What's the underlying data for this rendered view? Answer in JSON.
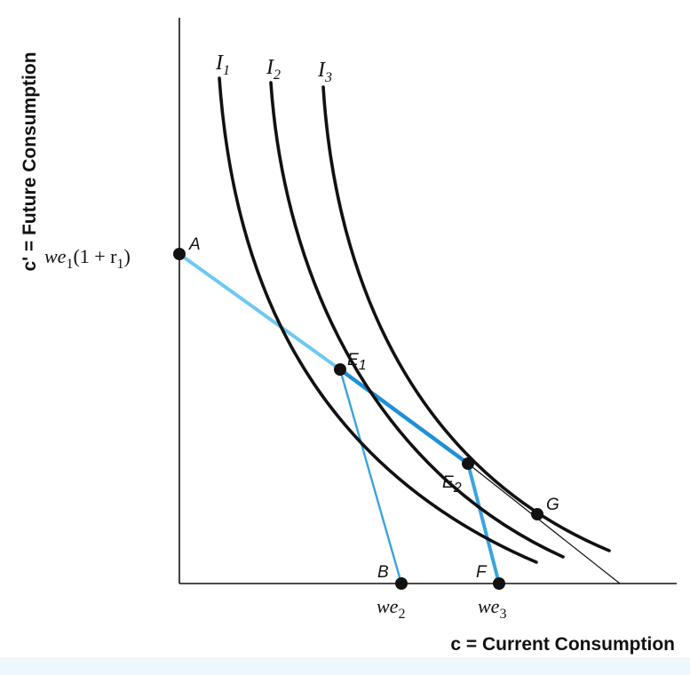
{
  "diagram": {
    "x_axis_title": "c = Current Consumption",
    "y_axis_title": "c' = Future Consumption",
    "y_intercept_label": {
      "base": "we",
      "sub": "1",
      "rest_open": "(1 + r",
      "rest_sub": "1",
      "rest_close": ")"
    },
    "indifference_curves": [
      {
        "base": "I",
        "sub": "1"
      },
      {
        "base": "I",
        "sub": "2"
      },
      {
        "base": "I",
        "sub": "3"
      }
    ],
    "points": {
      "A": "A",
      "B": "B",
      "F": "F",
      "G": "G",
      "E1": {
        "base": "E",
        "sub": "1"
      },
      "E2": {
        "base": "E",
        "sub": "2"
      }
    },
    "x_tick_labels": {
      "we2": {
        "base": "we",
        "sub": "2"
      },
      "we3": {
        "base": "we",
        "sub": "3"
      }
    },
    "colors": {
      "axis": "#111111",
      "curve": "#111111",
      "budget_light": "#6ec8f0",
      "budget_mid": "#3aa3e0",
      "budget_dark": "#1f8fd6",
      "point": "#111111",
      "bottom_band": "#eef7fb"
    }
  }
}
